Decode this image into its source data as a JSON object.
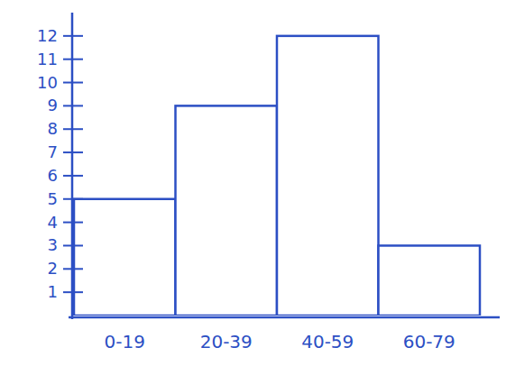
{
  "chart_data": {
    "type": "bar",
    "categories": [
      "0-19",
      "20-39",
      "40-59",
      "60-79"
    ],
    "values": [
      5,
      9,
      12,
      3
    ],
    "color": "#2c4fc4",
    "ylim": [
      0,
      13
    ],
    "yticks": [
      1,
      2,
      3,
      4,
      5,
      6,
      7,
      8,
      9,
      10,
      11,
      12
    ],
    "grid": false
  }
}
